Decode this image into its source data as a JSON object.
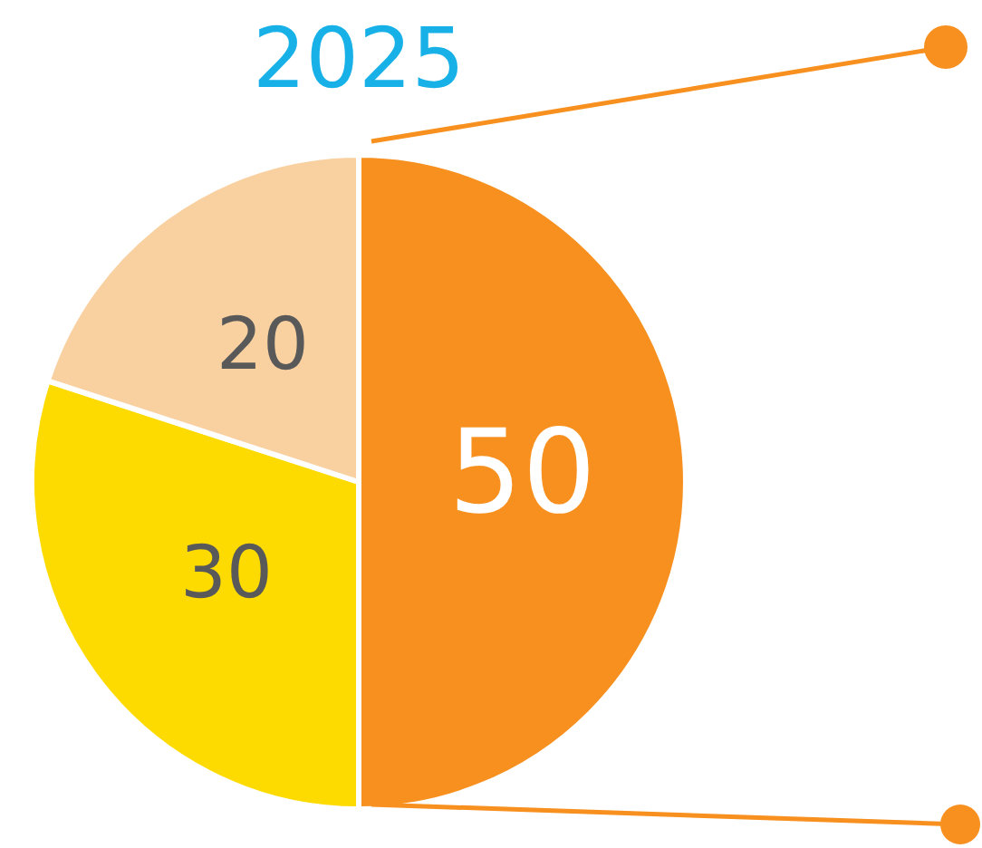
{
  "chart_data": {
    "type": "pie",
    "title": "2025",
    "categories": [
      null,
      null,
      null
    ],
    "values": [
      50,
      30,
      20
    ],
    "colors": [
      "#f7901e",
      "#fedb00",
      "#f9d0a0"
    ],
    "data_labels": true,
    "legend": false
  }
}
